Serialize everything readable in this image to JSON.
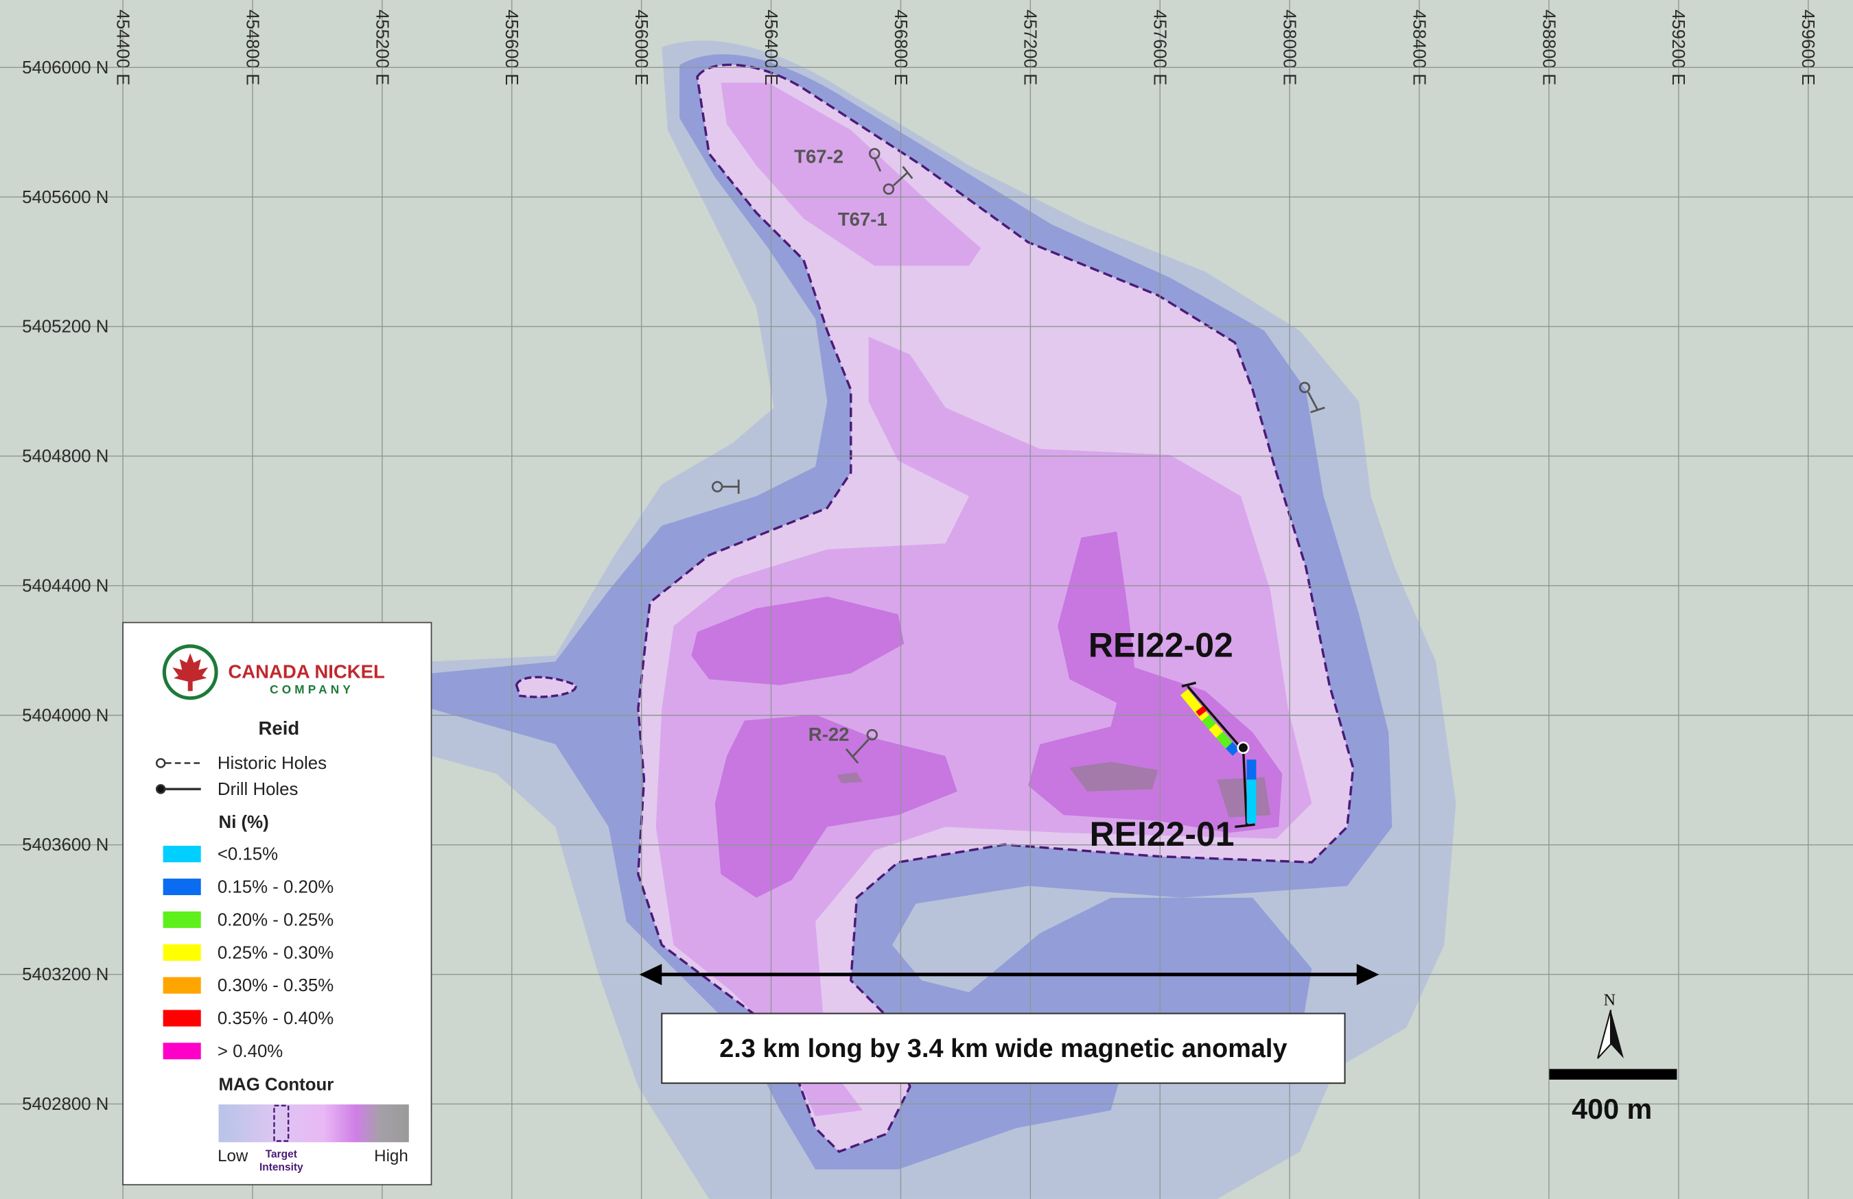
{
  "eastings": [
    "454400 E",
    "454800 E",
    "455200 E",
    "455600 E",
    "456000 E",
    "456400 E",
    "456800 E",
    "457200 E",
    "457600 E",
    "458000 E",
    "458400 E",
    "458800 E",
    "459200 E",
    "459600 E"
  ],
  "northings": [
    "5406000 N",
    "5405600 N",
    "5405200 N",
    "5404800 N",
    "5404400 N",
    "5404000 N",
    "5403600 N",
    "5403200 N",
    "5402800 N"
  ],
  "historic_holes": [
    "T67-2",
    "T67-1",
    "R-22"
  ],
  "drill_holes": [
    "REI22-02",
    "REI22-01"
  ],
  "legend": {
    "company": "CANADA NICKEL",
    "company_sub": "COMPANY",
    "title": "Reid",
    "historic": "Historic Holes",
    "drill": "Drill Holes",
    "ni_title": "Ni (%)",
    "ni_classes": [
      {
        "label": "<0.15%",
        "color": "#00cfff"
      },
      {
        "label": "0.15% - 0.20%",
        "color": "#0a6cf0"
      },
      {
        "label": "0.20% - 0.25%",
        "color": "#5df01a"
      },
      {
        "label": "0.25% - 0.30%",
        "color": "#ffff00"
      },
      {
        "label": "0.30% - 0.35%",
        "color": "#ffa500"
      },
      {
        "label": "0.35% - 0.40%",
        "color": "#ff0000"
      },
      {
        "label": "> 0.40%",
        "color": "#ff00c8"
      }
    ],
    "mag_title": "MAG Contour",
    "low": "Low",
    "target_1": "Target",
    "target_2": "Intensity",
    "high": "High"
  },
  "annotation": "2.3 km long by 3.4 km wide magnetic anomaly",
  "scale": {
    "north": "N",
    "label": "400 m"
  }
}
